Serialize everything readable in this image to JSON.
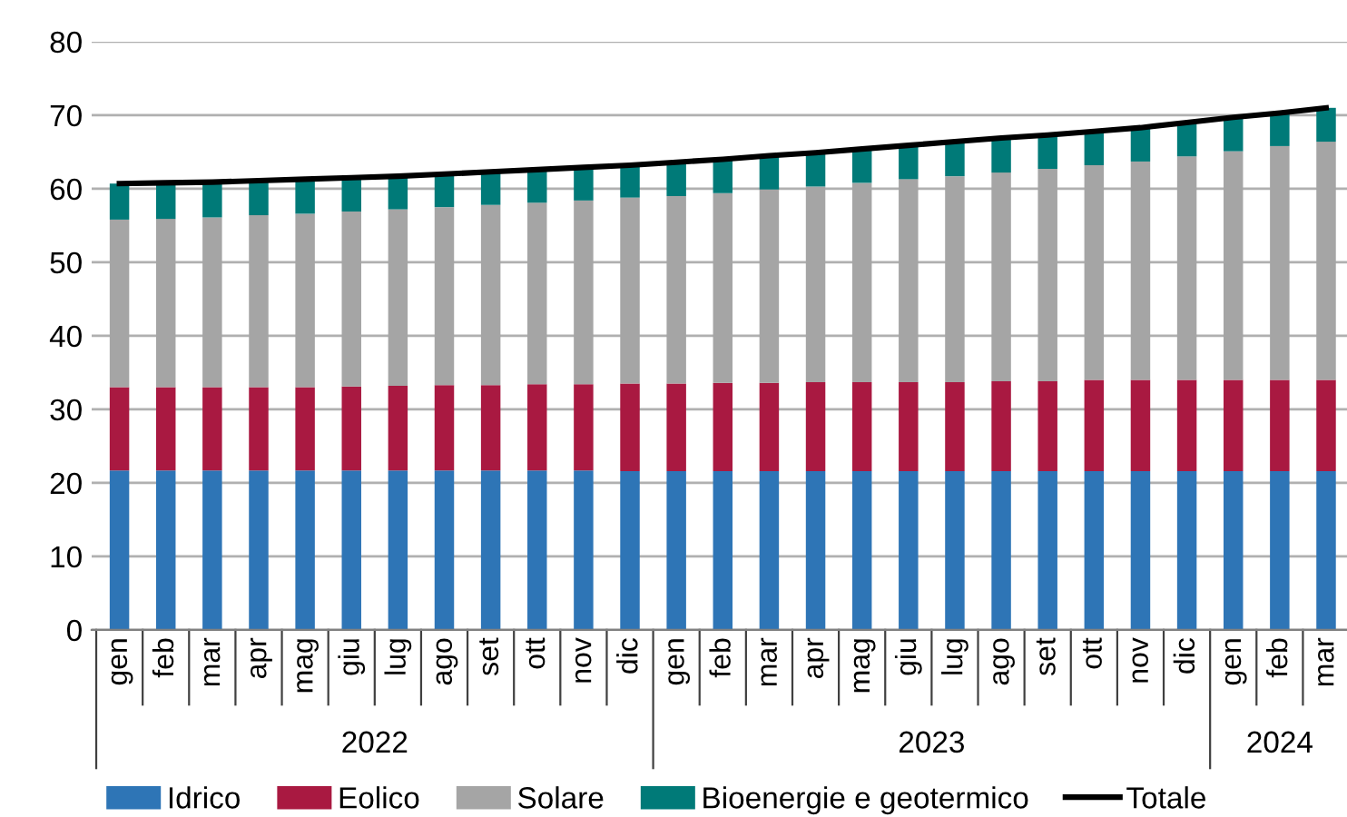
{
  "chart_data": {
    "type": "bar",
    "stacked": true,
    "categories": [
      "gen",
      "feb",
      "mar",
      "apr",
      "mag",
      "giu",
      "lug",
      "ago",
      "set",
      "ott",
      "nov",
      "dic",
      "gen",
      "feb",
      "mar",
      "apr",
      "mag",
      "giu",
      "lug",
      "ago",
      "set",
      "ott",
      "nov",
      "dic",
      "gen",
      "feb",
      "mar"
    ],
    "series": [
      {
        "name": "Idrico",
        "color": "#2e75b6",
        "values": [
          21.7,
          21.7,
          21.7,
          21.7,
          21.7,
          21.7,
          21.7,
          21.7,
          21.7,
          21.7,
          21.7,
          21.6,
          21.6,
          21.6,
          21.6,
          21.6,
          21.6,
          21.6,
          21.6,
          21.6,
          21.6,
          21.6,
          21.6,
          21.6,
          21.6,
          21.6,
          21.6
        ]
      },
      {
        "name": "Eolico",
        "color": "#a91941",
        "values": [
          11.3,
          11.3,
          11.3,
          11.3,
          11.3,
          11.4,
          11.5,
          11.6,
          11.6,
          11.7,
          11.7,
          11.9,
          11.9,
          12.0,
          12.0,
          12.1,
          12.1,
          12.1,
          12.1,
          12.2,
          12.2,
          12.4,
          12.4,
          12.4,
          12.4,
          12.4,
          12.4
        ]
      },
      {
        "name": "Solare",
        "color": "#a5a5a5",
        "values": [
          22.8,
          22.9,
          23.1,
          23.4,
          23.6,
          23.8,
          24.0,
          24.2,
          24.5,
          24.7,
          25.0,
          25.3,
          25.5,
          25.8,
          26.3,
          26.6,
          27.1,
          27.6,
          28.0,
          28.4,
          28.9,
          29.2,
          29.7,
          30.4,
          31.1,
          31.8,
          32.4
        ]
      },
      {
        "name": "Bioenergie e geotermico",
        "color": "#007a78",
        "values": [
          4.9,
          4.9,
          4.8,
          4.7,
          4.7,
          4.6,
          4.5,
          4.5,
          4.5,
          4.5,
          4.5,
          4.4,
          4.6,
          4.6,
          4.6,
          4.6,
          4.6,
          4.6,
          4.7,
          4.7,
          4.6,
          4.6,
          4.6,
          4.6,
          4.6,
          4.5,
          4.6
        ]
      },
      {
        "name": "Totale",
        "type": "line",
        "color": "#000000",
        "values": [
          60.7,
          60.8,
          60.9,
          61.1,
          61.3,
          61.5,
          61.7,
          62.0,
          62.3,
          62.6,
          62.9,
          63.2,
          63.6,
          64.0,
          64.5,
          64.9,
          65.4,
          65.9,
          66.4,
          66.9,
          67.3,
          67.8,
          68.3,
          69.0,
          69.7,
          70.3,
          71.0
        ]
      }
    ],
    "ylim": [
      0,
      80
    ],
    "yticks": [
      0,
      10,
      20,
      30,
      40,
      50,
      60,
      70,
      80
    ],
    "grid": "y",
    "legend": "bottom",
    "annotations": [
      "2022",
      "2023",
      "2024"
    ]
  }
}
